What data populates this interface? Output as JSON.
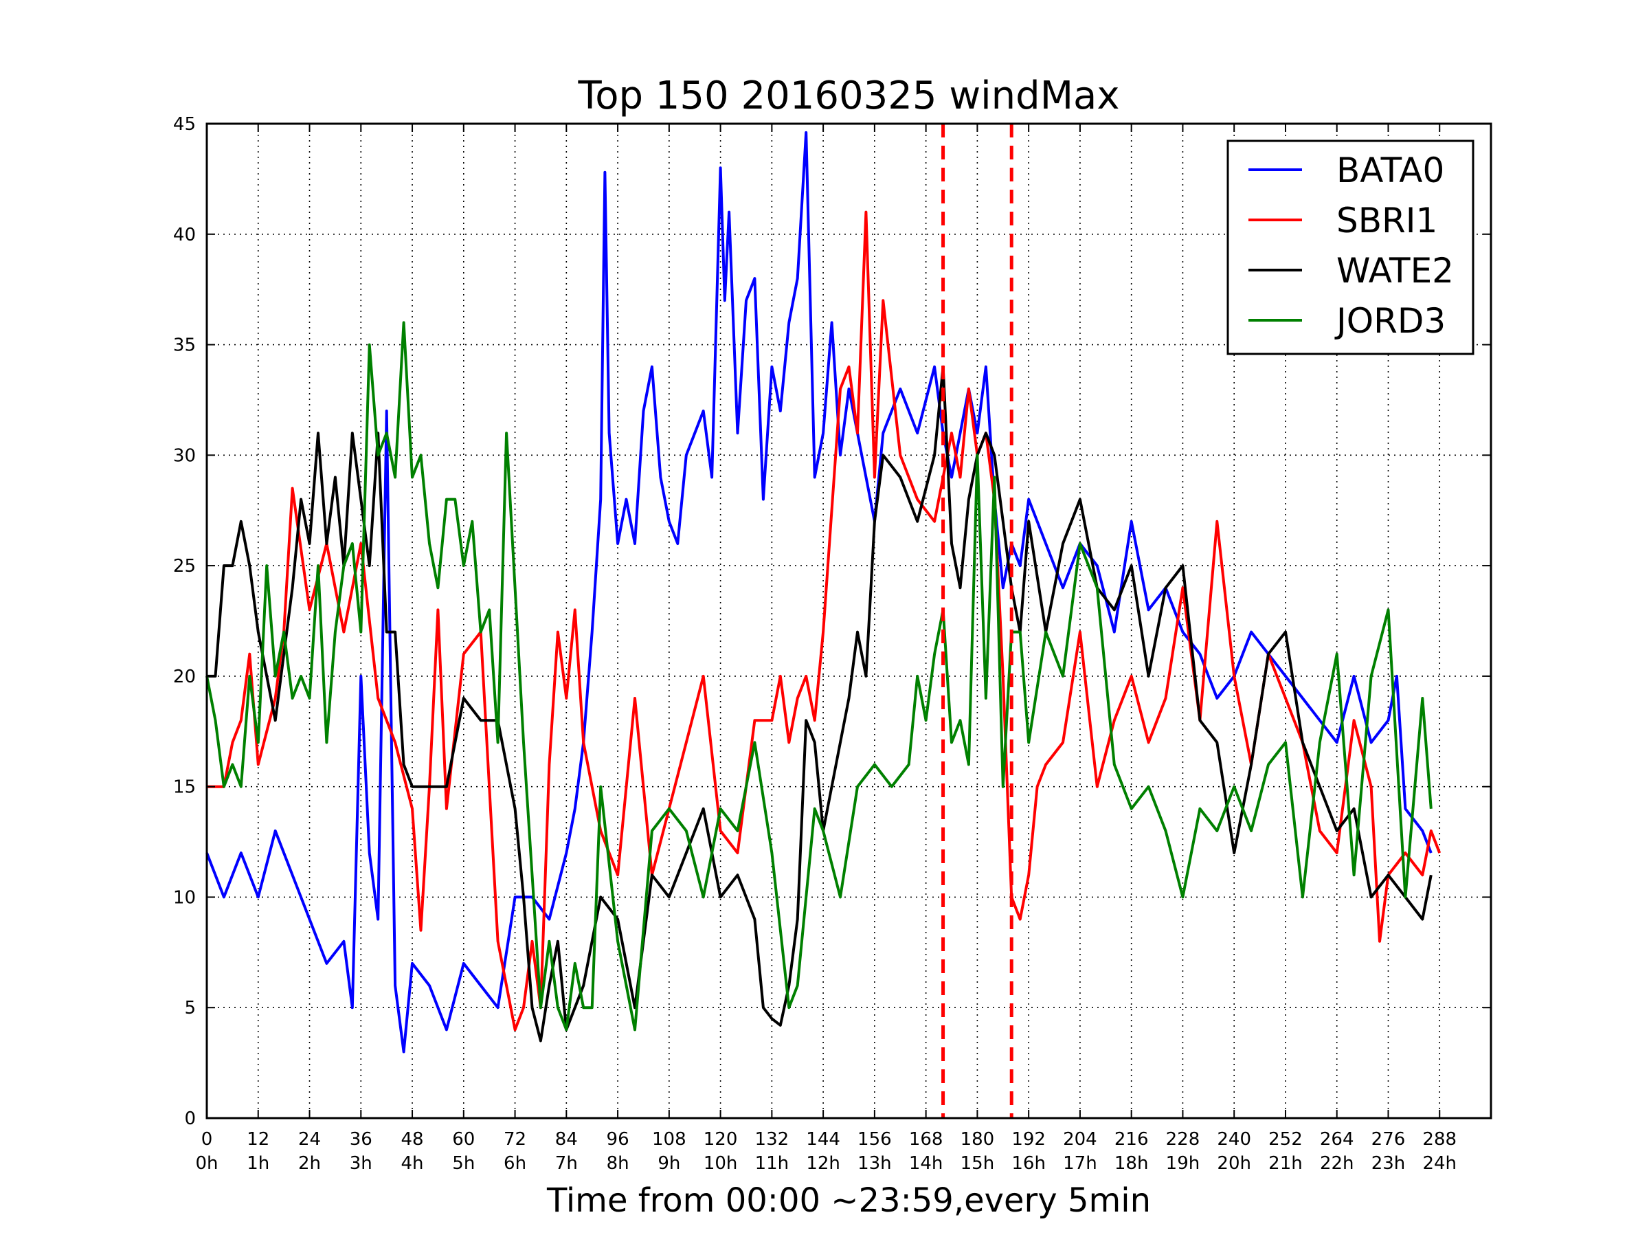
{
  "chart_data": {
    "type": "line",
    "title": "Top 150 20160325 windMax",
    "xlabel": "Time from 00:00 ~23:59,every 5min",
    "ylabel": "",
    "xlim": [
      0,
      300
    ],
    "ylim": [
      0,
      45
    ],
    "grid": true,
    "legend_position": "top-right",
    "x_ticks": [
      0,
      12,
      24,
      36,
      48,
      60,
      72,
      84,
      96,
      108,
      120,
      132,
      144,
      156,
      168,
      180,
      192,
      204,
      216,
      228,
      240,
      252,
      264,
      276,
      288
    ],
    "x_tick_labels": [
      "0",
      "12",
      "24",
      "36",
      "48",
      "60",
      "72",
      "84",
      "96",
      "108",
      "120",
      "132",
      "144",
      "156",
      "168",
      "180",
      "192",
      "204",
      "216",
      "228",
      "240",
      "252",
      "264",
      "276",
      "288"
    ],
    "x_tick_hours": [
      "0h",
      "1h",
      "2h",
      "3h",
      "4h",
      "5h",
      "6h",
      "7h",
      "8h",
      "9h",
      "10h",
      "11h",
      "12h",
      "13h",
      "14h",
      "15h",
      "16h",
      "17h",
      "18h",
      "19h",
      "20h",
      "21h",
      "22h",
      "23h",
      "24h"
    ],
    "y_ticks": [
      0,
      5,
      10,
      15,
      20,
      25,
      30,
      35,
      40,
      45
    ],
    "vlines": [
      172,
      188
    ],
    "series": [
      {
        "name": "BATA0",
        "color": "#0000ff",
        "x": [
          0,
          4,
          8,
          12,
          16,
          20,
          24,
          28,
          32,
          34,
          36,
          38,
          40,
          42,
          44,
          46,
          48,
          52,
          56,
          60,
          64,
          68,
          72,
          76,
          80,
          84,
          86,
          88,
          90,
          92,
          93,
          94,
          96,
          98,
          100,
          102,
          104,
          106,
          108,
          110,
          112,
          116,
          118,
          120,
          121,
          122,
          124,
          126,
          128,
          130,
          132,
          134,
          136,
          138,
          140,
          142,
          144,
          146,
          148,
          150,
          152,
          156,
          158,
          162,
          166,
          170,
          172,
          174,
          176,
          178,
          180,
          182,
          184,
          186,
          188,
          190,
          192,
          196,
          200,
          204,
          208,
          212,
          216,
          220,
          224,
          228,
          232,
          236,
          240,
          244,
          248,
          252,
          256,
          260,
          264,
          268,
          272,
          276,
          278,
          280,
          284,
          286
        ],
        "y": [
          12,
          10,
          12,
          10,
          13,
          11,
          9,
          7,
          8,
          5,
          20,
          12,
          9,
          32,
          6,
          3,
          7,
          6,
          4,
          7,
          6,
          5,
          10,
          10,
          9,
          12,
          14,
          17,
          22,
          28,
          42.8,
          31,
          26,
          28,
          26,
          32,
          34,
          29,
          27,
          26,
          30,
          32,
          29,
          43,
          37,
          41,
          31,
          37,
          38,
          28,
          34,
          32,
          36,
          38,
          44.6,
          29,
          31,
          36,
          30,
          33,
          31,
          27,
          31,
          33,
          31,
          34,
          31,
          29,
          31,
          33,
          31,
          34,
          28,
          24,
          26,
          25,
          28,
          26,
          24,
          26,
          25,
          22,
          27,
          23,
          24,
          22,
          21,
          19,
          20,
          22,
          21,
          20,
          19,
          18,
          17,
          20,
          17,
          18,
          20,
          14,
          13,
          12
        ]
      },
      {
        "name": "SBRI1",
        "color": "#ff0000",
        "x": [
          0,
          2,
          4,
          6,
          8,
          10,
          12,
          16,
          18,
          20,
          24,
          28,
          32,
          36,
          40,
          44,
          48,
          50,
          52,
          54,
          56,
          60,
          64,
          68,
          72,
          74,
          76,
          78,
          80,
          82,
          84,
          86,
          88,
          90,
          92,
          96,
          100,
          104,
          108,
          112,
          116,
          120,
          124,
          128,
          132,
          134,
          136,
          138,
          140,
          142,
          144,
          148,
          150,
          152,
          154,
          156,
          158,
          162,
          166,
          170,
          172,
          174,
          176,
          178,
          180,
          182,
          184,
          186,
          188,
          190,
          192,
          194,
          196,
          200,
          204,
          208,
          212,
          216,
          220,
          224,
          228,
          232,
          236,
          240,
          244,
          248,
          252,
          256,
          260,
          264,
          268,
          272,
          274,
          276,
          280,
          284,
          286,
          288
        ],
        "y": [
          15,
          15,
          15,
          17,
          18,
          21,
          16,
          19,
          22,
          28.5,
          23,
          26,
          22,
          26,
          19,
          17,
          14,
          8.5,
          15,
          23,
          14,
          21,
          22,
          8,
          4,
          5,
          8,
          5,
          16,
          22,
          19,
          23,
          17,
          15,
          13,
          11,
          19,
          11,
          14,
          17,
          20,
          13,
          12,
          18,
          18,
          20,
          17,
          19,
          20,
          18,
          22,
          33,
          34,
          31,
          41,
          29,
          37,
          30,
          28,
          27,
          29,
          31,
          29,
          33,
          30,
          31,
          28,
          20,
          10,
          9,
          11,
          15,
          16,
          17,
          22,
          15,
          18,
          20,
          17,
          19,
          24,
          18,
          27,
          20,
          16,
          21,
          19,
          17,
          13,
          12,
          18,
          15,
          8,
          11,
          12,
          11,
          13,
          12
        ]
      },
      {
        "name": "WATE2",
        "color": "#000000",
        "x": [
          0,
          2,
          4,
          6,
          8,
          10,
          12,
          16,
          20,
          22,
          24,
          26,
          28,
          30,
          32,
          34,
          36,
          38,
          40,
          42,
          44,
          46,
          48,
          52,
          56,
          60,
          64,
          68,
          72,
          74,
          76,
          78,
          80,
          82,
          84,
          88,
          92,
          96,
          100,
          104,
          108,
          112,
          116,
          120,
          124,
          128,
          130,
          132,
          134,
          136,
          138,
          140,
          142,
          144,
          148,
          150,
          152,
          154,
          156,
          158,
          162,
          166,
          170,
          172,
          174,
          176,
          178,
          180,
          182,
          184,
          186,
          188,
          190,
          192,
          196,
          200,
          204,
          208,
          212,
          216,
          220,
          224,
          228,
          232,
          236,
          240,
          244,
          248,
          252,
          256,
          260,
          264,
          268,
          272,
          276,
          280,
          284,
          286
        ],
        "y": [
          20,
          20,
          25,
          25,
          27,
          25,
          22,
          18,
          24,
          28,
          26,
          31,
          26,
          29,
          25,
          31,
          28,
          25,
          31,
          22,
          22,
          16,
          15,
          15,
          15,
          19,
          18,
          18,
          14,
          10,
          5,
          3.5,
          6,
          8,
          4,
          6,
          10,
          9,
          5,
          11,
          10,
          12,
          14,
          10,
          11,
          9,
          5,
          4.5,
          4.2,
          6,
          9,
          18,
          17,
          13,
          17,
          19,
          22,
          20,
          27,
          30,
          29,
          27,
          30,
          34,
          26,
          24,
          28,
          30,
          31,
          30,
          27,
          24,
          22,
          27,
          22,
          26,
          28,
          24,
          23,
          25,
          20,
          24,
          25,
          18,
          17,
          12,
          16,
          21,
          22,
          17,
          15,
          13,
          14,
          10,
          11,
          10,
          9,
          11
        ]
      },
      {
        "name": "JORD3",
        "color": "#008000",
        "x": [
          0,
          2,
          4,
          6,
          8,
          10,
          12,
          14,
          16,
          18,
          20,
          22,
          24,
          26,
          28,
          30,
          32,
          34,
          36,
          38,
          40,
          42,
          44,
          46,
          48,
          50,
          52,
          54,
          56,
          58,
          60,
          62,
          64,
          66,
          68,
          70,
          72,
          74,
          76,
          78,
          80,
          82,
          84,
          86,
          88,
          90,
          92,
          96,
          100,
          104,
          108,
          112,
          116,
          120,
          124,
          128,
          132,
          136,
          138,
          140,
          142,
          144,
          148,
          152,
          156,
          160,
          164,
          166,
          168,
          170,
          172,
          174,
          176,
          178,
          180,
          182,
          184,
          186,
          188,
          190,
          192,
          196,
          200,
          204,
          208,
          212,
          216,
          220,
          224,
          228,
          232,
          236,
          240,
          244,
          248,
          252,
          256,
          260,
          264,
          268,
          272,
          276,
          280,
          284,
          286
        ],
        "y": [
          20,
          18,
          15,
          16,
          15,
          20,
          17,
          25,
          20,
          22,
          19,
          20,
          19,
          25,
          17,
          22,
          25,
          26,
          22,
          35,
          30,
          31,
          29,
          36,
          29,
          30,
          26,
          24,
          28,
          28,
          25,
          27,
          22,
          23,
          17,
          31,
          24,
          17,
          11,
          5,
          8,
          5,
          4,
          7,
          5,
          5,
          15,
          8,
          4,
          13,
          14,
          13,
          10,
          14,
          13,
          17,
          12,
          5,
          6,
          10,
          14,
          13,
          10,
          15,
          16,
          15,
          16,
          20,
          18,
          21,
          23,
          17,
          18,
          16,
          30,
          19,
          29,
          15,
          22,
          22,
          17,
          22,
          20,
          26,
          24,
          16,
          14,
          15,
          13,
          10,
          14,
          13,
          15,
          13,
          16,
          17,
          10,
          17,
          21,
          11,
          20,
          23,
          10,
          19,
          14
        ]
      }
    ]
  }
}
